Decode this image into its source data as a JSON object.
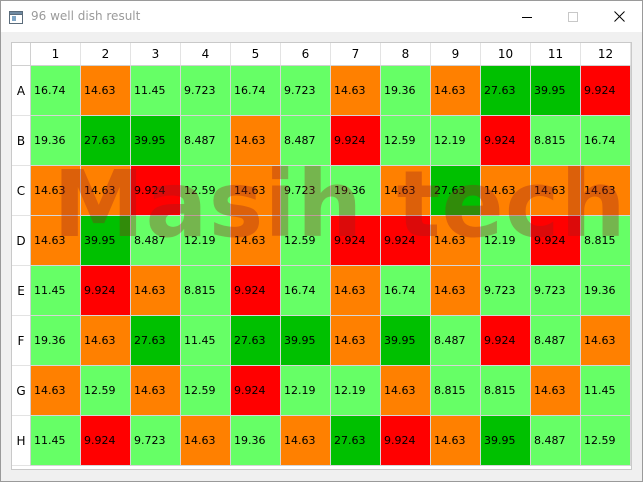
{
  "window": {
    "title": "96 well dish result",
    "icons": {
      "app": "app-window-icon",
      "minimize": "minimize-icon",
      "maximize": "maximize-icon",
      "close": "close-icon"
    }
  },
  "plate": {
    "columns": [
      "1",
      "2",
      "3",
      "4",
      "5",
      "6",
      "7",
      "8",
      "9",
      "10",
      "11",
      "12"
    ],
    "rows": [
      {
        "label": "A",
        "values": [
          "16.74",
          "14.63",
          "11.45",
          "9.723",
          "16.74",
          "9.723",
          "14.63",
          "19.36",
          "14.63",
          "27.63",
          "39.95",
          "9.924"
        ]
      },
      {
        "label": "B",
        "values": [
          "19.36",
          "27.63",
          "39.95",
          "8.487",
          "14.63",
          "8.487",
          "9.924",
          "12.59",
          "12.19",
          "9.924",
          "8.815",
          "16.74"
        ]
      },
      {
        "label": "C",
        "values": [
          "14.63",
          "14.63",
          "9.924",
          "12.59",
          "14.63",
          "9.723",
          "19.36",
          "14.63",
          "27.63",
          "14.63",
          "14.63",
          "14.63"
        ]
      },
      {
        "label": "D",
        "values": [
          "14.63",
          "39.95",
          "8.487",
          "12.19",
          "14.63",
          "12.59",
          "9.924",
          "9.924",
          "14.63",
          "12.19",
          "9.924",
          "8.815"
        ]
      },
      {
        "label": "E",
        "values": [
          "11.45",
          "9.924",
          "14.63",
          "8.815",
          "9.924",
          "16.74",
          "14.63",
          "16.74",
          "14.63",
          "9.723",
          "9.723",
          "19.36"
        ]
      },
      {
        "label": "F",
        "values": [
          "19.36",
          "14.63",
          "27.63",
          "11.45",
          "27.63",
          "39.95",
          "14.63",
          "39.95",
          "8.487",
          "9.924",
          "8.487",
          "14.63"
        ]
      },
      {
        "label": "G",
        "values": [
          "14.63",
          "12.59",
          "14.63",
          "12.59",
          "9.924",
          "12.19",
          "12.19",
          "14.63",
          "8.815",
          "8.815",
          "14.63",
          "11.45"
        ]
      },
      {
        "label": "H",
        "values": [
          "11.45",
          "9.924",
          "9.723",
          "14.63",
          "19.36",
          "14.63",
          "27.63",
          "9.924",
          "14.63",
          "39.95",
          "8.487",
          "12.59"
        ]
      }
    ]
  },
  "color_scale": {
    "9.924": "#ff0000",
    "14.63": "#ff8000",
    "27.63": "#00c000",
    "39.95": "#00c000",
    "default": "#66ff66"
  },
  "watermark": "Masih tech"
}
